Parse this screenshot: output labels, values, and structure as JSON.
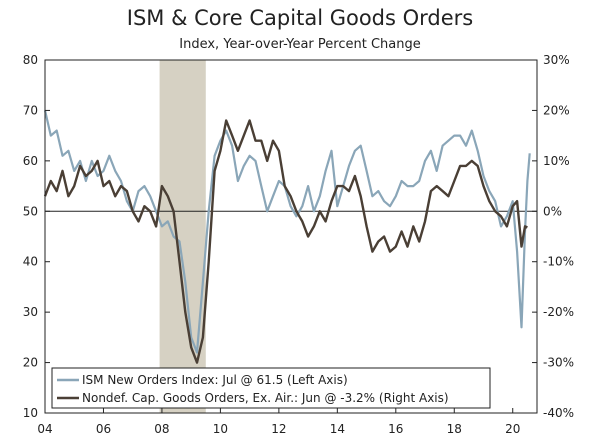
{
  "chart_data": {
    "type": "line",
    "title": "ISM & Core Capital Goods Orders",
    "subtitle": "Index, Year-over-Year Percent Change",
    "x_ticks": [
      "04",
      "06",
      "08",
      "10",
      "12",
      "14",
      "16",
      "18",
      "20"
    ],
    "x_tick_years": [
      2004,
      2006,
      2008,
      2010,
      2012,
      2014,
      2016,
      2018,
      2020
    ],
    "xlim": [
      2004.0,
      2020.83
    ],
    "left_axis": {
      "ticks": [
        "80",
        "70",
        "60",
        "50",
        "40",
        "30",
        "20",
        "10"
      ],
      "ylim": [
        10,
        80
      ]
    },
    "right_axis": {
      "ticks": [
        "30%",
        "20%",
        "10%",
        "0%",
        "-10%",
        "-20%",
        "-30%",
        "-40%"
      ],
      "ylim": [
        -40,
        30
      ]
    },
    "recession": {
      "start": 2007.92,
      "end": 2009.5
    },
    "series": [
      {
        "name": "ISM New Orders Index: Jul @ 61.5 (Left Axis)",
        "axis": "left",
        "color": "#8aa6b8",
        "x": [
          2004.0,
          2004.2,
          2004.4,
          2004.6,
          2004.8,
          2005.0,
          2005.2,
          2005.4,
          2005.6,
          2005.8,
          2006.0,
          2006.2,
          2006.4,
          2006.6,
          2006.8,
          2007.0,
          2007.2,
          2007.4,
          2007.6,
          2007.8,
          2008.0,
          2008.2,
          2008.4,
          2008.6,
          2008.8,
          2009.0,
          2009.2,
          2009.4,
          2009.6,
          2009.8,
          2010.0,
          2010.2,
          2010.4,
          2010.6,
          2010.8,
          2011.0,
          2011.2,
          2011.4,
          2011.6,
          2011.8,
          2012.0,
          2012.2,
          2012.4,
          2012.6,
          2012.8,
          2013.0,
          2013.2,
          2013.4,
          2013.6,
          2013.8,
          2014.0,
          2014.2,
          2014.4,
          2014.6,
          2014.8,
          2015.0,
          2015.2,
          2015.4,
          2015.6,
          2015.8,
          2016.0,
          2016.2,
          2016.4,
          2016.6,
          2016.8,
          2017.0,
          2017.2,
          2017.4,
          2017.6,
          2017.8,
          2018.0,
          2018.2,
          2018.4,
          2018.6,
          2018.8,
          2019.0,
          2019.2,
          2019.4,
          2019.6,
          2019.8,
          2020.0,
          2020.15,
          2020.3,
          2020.42,
          2020.5,
          2020.58
        ],
        "values": [
          70,
          65,
          66,
          61,
          62,
          58,
          60,
          56,
          60,
          57,
          58,
          61,
          58,
          56,
          52,
          50,
          54,
          55,
          53,
          50,
          47,
          48,
          45,
          44,
          36,
          25,
          22,
          36,
          50,
          61,
          64,
          66,
          63,
          56,
          59,
          61,
          60,
          55,
          50,
          53,
          56,
          55,
          51,
          49,
          51,
          55,
          50,
          53,
          58,
          62,
          51,
          55,
          59,
          62,
          63,
          58,
          53,
          54,
          52,
          51,
          53,
          56,
          55,
          55,
          56,
          60,
          62,
          58,
          63,
          64,
          65,
          65,
          63,
          66,
          62,
          57,
          54,
          52,
          47,
          49,
          52,
          42,
          27,
          46,
          56,
          61.5
        ]
      },
      {
        "name": "Nondef. Cap. Goods Orders, Ex. Air.: Jun @ -3.2% (Right Axis)",
        "axis": "right",
        "color": "#4a3f35",
        "x": [
          2004.0,
          2004.2,
          2004.4,
          2004.6,
          2004.8,
          2005.0,
          2005.2,
          2005.4,
          2005.6,
          2005.8,
          2006.0,
          2006.2,
          2006.4,
          2006.6,
          2006.8,
          2007.0,
          2007.2,
          2007.4,
          2007.6,
          2007.8,
          2008.0,
          2008.2,
          2008.4,
          2008.6,
          2008.8,
          2009.0,
          2009.2,
          2009.4,
          2009.6,
          2009.8,
          2010.0,
          2010.2,
          2010.4,
          2010.6,
          2010.8,
          2011.0,
          2011.2,
          2011.4,
          2011.6,
          2011.8,
          2012.0,
          2012.2,
          2012.4,
          2012.6,
          2012.8,
          2013.0,
          2013.2,
          2013.4,
          2013.6,
          2013.8,
          2014.0,
          2014.2,
          2014.4,
          2014.6,
          2014.8,
          2015.0,
          2015.2,
          2015.4,
          2015.6,
          2015.8,
          2016.0,
          2016.2,
          2016.4,
          2016.6,
          2016.8,
          2017.0,
          2017.2,
          2017.4,
          2017.6,
          2017.8,
          2018.0,
          2018.2,
          2018.4,
          2018.6,
          2018.8,
          2019.0,
          2019.2,
          2019.4,
          2019.6,
          2019.8,
          2020.0,
          2020.15,
          2020.3,
          2020.42,
          2020.5
        ],
        "values": [
          3,
          6,
          4,
          8,
          3,
          5,
          9,
          7,
          8,
          10,
          5,
          6,
          3,
          5,
          4,
          0,
          -2,
          1,
          0,
          -3,
          5,
          3,
          0,
          -10,
          -20,
          -27,
          -30,
          -25,
          -10,
          8,
          12,
          18,
          15,
          12,
          15,
          18,
          14,
          14,
          10,
          14,
          12,
          5,
          3,
          0,
          -2,
          -5,
          -3,
          0,
          -2,
          2,
          5,
          5,
          4,
          7,
          3,
          -3,
          -8,
          -6,
          -5,
          -8,
          -7,
          -4,
          -7,
          -3,
          -6,
          -2,
          4,
          5,
          4,
          3,
          6,
          9,
          9,
          10,
          9,
          5,
          2,
          0,
          -1,
          -3,
          1,
          2,
          -7,
          -3,
          -3.2
        ]
      }
    ]
  }
}
